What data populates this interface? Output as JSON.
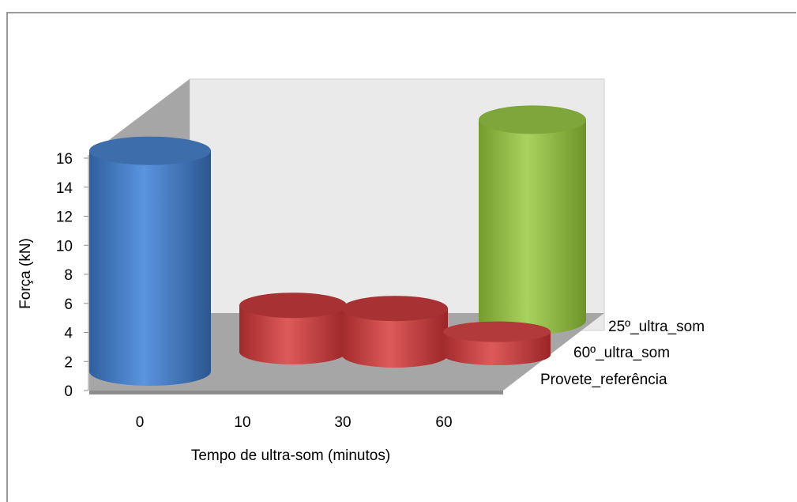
{
  "chart_data": {
    "type": "bar",
    "style": "3d-cylinder",
    "categories": [
      "0",
      "10",
      "30",
      "60"
    ],
    "series": [
      {
        "name": "Provete_referência",
        "color": "#4a7fc8",
        "values": [
          15.2,
          null,
          null,
          null
        ]
      },
      {
        "name": "60º_ultra_som",
        "color": "#c0393b",
        "values": [
          null,
          3.2,
          3.2,
          1.6
        ]
      },
      {
        "name": "25º_ultra_som",
        "color": "#8fbf3f",
        "values": [
          null,
          null,
          null,
          13.8
        ]
      }
    ],
    "xlabel": "Tempo de ultra-som (minutos)",
    "ylabel": "Força (kN)",
    "ylim": [
      0,
      16
    ],
    "yticks": [
      "0",
      "2",
      "4",
      "6",
      "8",
      "10",
      "12",
      "14",
      "16"
    ],
    "depth_labels": [
      "25º_ultra_som",
      "60º_ultra_som",
      "Provete_referência"
    ],
    "grid": false
  }
}
